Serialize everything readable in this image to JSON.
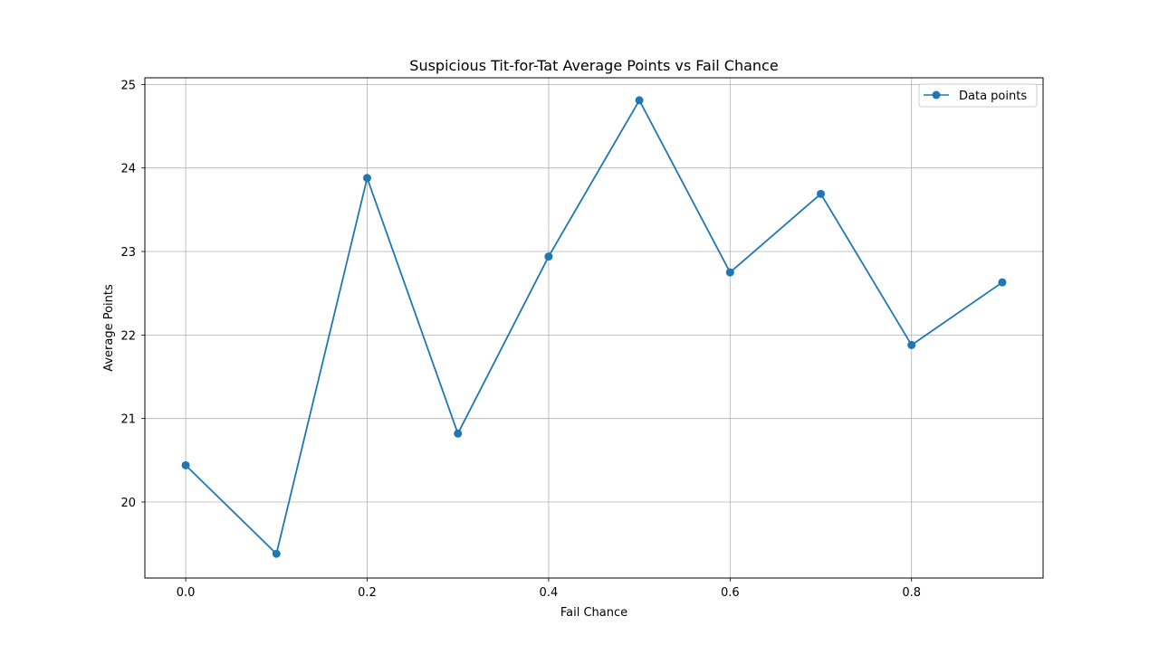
{
  "chart_data": {
    "type": "line",
    "title": "Suspicious Tit-for-Tat Average Points vs Fail Chance",
    "xlabel": "Fail Chance",
    "ylabel": "Average Points",
    "x": [
      0.0,
      0.1,
      0.2,
      0.3,
      0.4,
      0.5,
      0.6,
      0.7,
      0.8,
      0.9
    ],
    "series": [
      {
        "name": "Data points",
        "values": [
          20.44,
          19.38,
          23.88,
          20.82,
          22.94,
          24.81,
          22.75,
          23.69,
          21.88,
          22.63
        ],
        "color": "#1f77b4",
        "marker": "circle"
      }
    ],
    "xlim": [
      -0.045,
      0.945
    ],
    "ylim": [
      19.09,
      25.08
    ],
    "xticks": [
      0.0,
      0.2,
      0.4,
      0.6,
      0.8
    ],
    "xtick_labels": [
      "0.0",
      "0.2",
      "0.4",
      "0.6",
      "0.8"
    ],
    "yticks": [
      20,
      21,
      22,
      23,
      24,
      25
    ],
    "ytick_labels": [
      "20",
      "21",
      "22",
      "23",
      "24",
      "25"
    ],
    "grid": true,
    "legend_position": "top-right"
  }
}
